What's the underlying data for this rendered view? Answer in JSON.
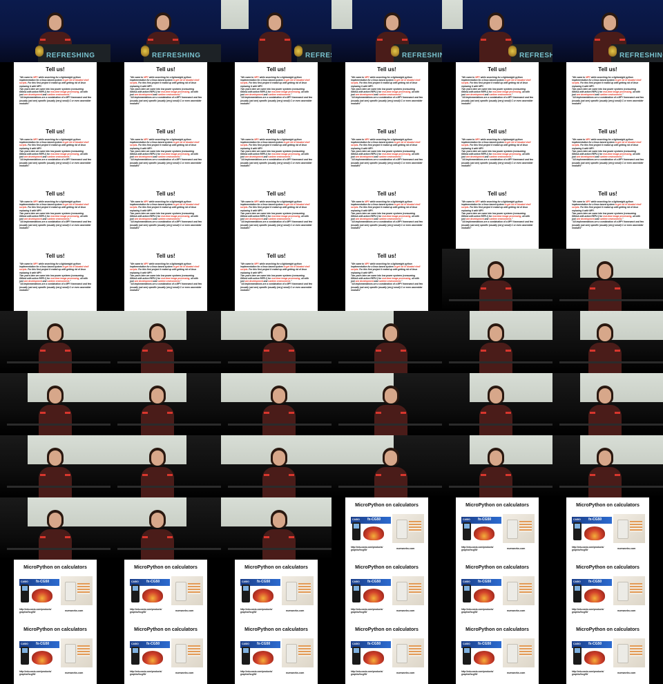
{
  "stage_brand": "REFRESHING",
  "slide_tell_us": {
    "title": "Tell us!",
    "quote1_part1": "\"We came to ",
    "quote1_red1": "MPY",
    "quote1_part2": " while searching for a lightweight python implementation for a linux based system ",
    "quote1_red2": "to get rid of bloated shell scripts",
    "quote1_part3": ". For this first project it ended up with getting rid of linux replacing it with MPY.",
    "quote2_part1": "Two years later we came into low power systems (consuming 600mA with active REPL!) for ",
    "quote2_red1": "real-time image processing",
    "quote2_part2": ", all with just ",
    "quote2_red2": "one development",
    "quote2_part3": " and ",
    "quote2_red3": "runtime environment",
    "quote2_part4": ".\"",
    "quote3": "\"All implementations are a combination of a MPY framework and few (usually just one) specific (usually (very) small) C or even assembler modules\""
  },
  "slide_micropython": {
    "title": "MicroPython on calculators",
    "brand": "CASIO",
    "model": "fx-CG50",
    "url": "http://edu.casio.com/products/ graphic/fxcg50/",
    "site": "numworks.com"
  },
  "tiles": [
    {
      "type": "stage",
      "variant": 0
    },
    {
      "type": "stage",
      "variant": 1
    },
    {
      "type": "stage",
      "variant": 2
    },
    {
      "type": "stage",
      "variant": 3
    },
    {
      "type": "stage",
      "variant": 4
    },
    {
      "type": "stage",
      "variant": 5
    },
    {
      "type": "tell"
    },
    {
      "type": "tell"
    },
    {
      "type": "tell"
    },
    {
      "type": "tell"
    },
    {
      "type": "tell"
    },
    {
      "type": "tell"
    },
    {
      "type": "tell"
    },
    {
      "type": "tell"
    },
    {
      "type": "tell"
    },
    {
      "type": "tell"
    },
    {
      "type": "tell"
    },
    {
      "type": "tell"
    },
    {
      "type": "tell"
    },
    {
      "type": "tell"
    },
    {
      "type": "tell"
    },
    {
      "type": "tell"
    },
    {
      "type": "tell"
    },
    {
      "type": "tell"
    },
    {
      "type": "tell"
    },
    {
      "type": "tell"
    },
    {
      "type": "tell"
    },
    {
      "type": "tell"
    },
    {
      "type": "warm",
      "variant": 0
    },
    {
      "type": "warm",
      "variant": 1
    },
    {
      "type": "warm",
      "variant": 2
    },
    {
      "type": "warm",
      "variant": 3
    },
    {
      "type": "warm",
      "variant": 4
    },
    {
      "type": "warm",
      "variant": 5
    },
    {
      "type": "warm",
      "variant": 0
    },
    {
      "type": "warm",
      "variant": 1
    },
    {
      "type": "warm",
      "variant": 2
    },
    {
      "type": "warm",
      "variant": 3
    },
    {
      "type": "warm",
      "variant": 4
    },
    {
      "type": "warm",
      "variant": 5
    },
    {
      "type": "warm",
      "variant": 0
    },
    {
      "type": "warm",
      "variant": 1
    },
    {
      "type": "warm",
      "variant": 2
    },
    {
      "type": "warm",
      "variant": 3
    },
    {
      "type": "warm",
      "variant": 4
    },
    {
      "type": "warm",
      "variant": 5
    },
    {
      "type": "warm",
      "variant": 0
    },
    {
      "type": "warm",
      "variant": 1
    },
    {
      "type": "warm",
      "variant": 2
    },
    {
      "type": "warm",
      "variant": 3
    },
    {
      "type": "warm",
      "variant": 4
    },
    {
      "type": "mp"
    },
    {
      "type": "mp"
    },
    {
      "type": "mp"
    },
    {
      "type": "mp"
    },
    {
      "type": "mp"
    },
    {
      "type": "mp"
    },
    {
      "type": "mp"
    },
    {
      "type": "mp"
    },
    {
      "type": "mp"
    },
    {
      "type": "mp"
    },
    {
      "type": "mp"
    },
    {
      "type": "mp"
    },
    {
      "type": "mp"
    },
    {
      "type": "mp"
    },
    {
      "type": "mp"
    }
  ]
}
